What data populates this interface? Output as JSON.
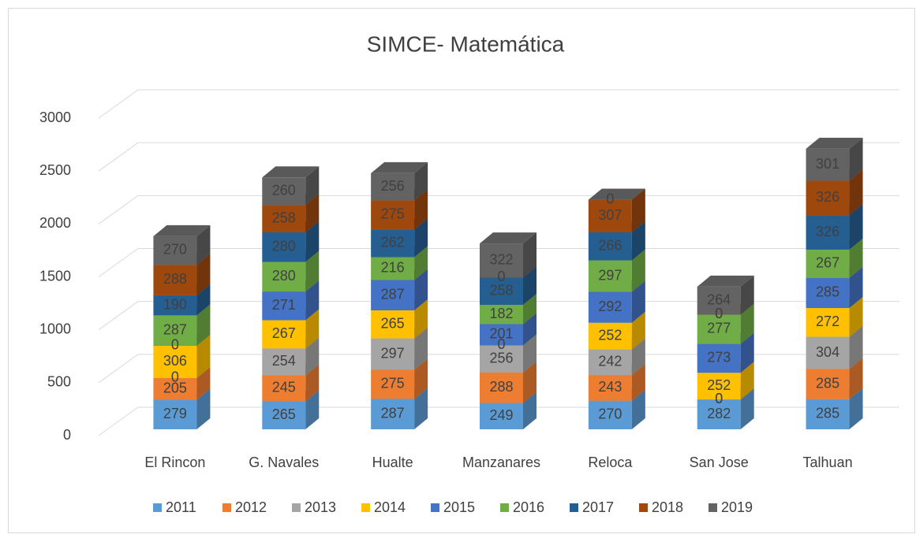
{
  "chart_data": {
    "type": "bar3d_stacked",
    "title": "SIMCE- Matemática",
    "categories": [
      "El Rincon",
      "G. Navales",
      "Hualte",
      "Manzanares",
      "Reloca",
      "San Jose",
      "Talhuan"
    ],
    "series": [
      {
        "name": "2011",
        "color": "#5b9bd5",
        "values": [
          279,
          265,
          287,
          249,
          270,
          282,
          285
        ]
      },
      {
        "name": "2012",
        "color": "#ed7d31",
        "values": [
          205,
          245,
          275,
          288,
          243,
          0,
          285
        ]
      },
      {
        "name": "2013",
        "color": "#a5a5a5",
        "values": [
          0,
          254,
          297,
          256,
          242,
          0,
          304
        ]
      },
      {
        "name": "2014",
        "color": "#ffc000",
        "values": [
          306,
          267,
          265,
          0,
          252,
          252,
          272
        ]
      },
      {
        "name": "2015",
        "color": "#4472c4",
        "values": [
          0,
          271,
          287,
          201,
          292,
          273,
          285
        ]
      },
      {
        "name": "2016",
        "color": "#70ad47",
        "values": [
          287,
          280,
          216,
          182,
          297,
          277,
          267
        ]
      },
      {
        "name": "2017",
        "color": "#255e91",
        "values": [
          190,
          280,
          262,
          258,
          266,
          0,
          326
        ]
      },
      {
        "name": "2018",
        "color": "#9e480e",
        "values": [
          288,
          258,
          275,
          0,
          307,
          0,
          326
        ]
      },
      {
        "name": "2019",
        "color": "#636363",
        "values": [
          270,
          260,
          256,
          322,
          0,
          264,
          301
        ]
      }
    ],
    "ylim": [
      0,
      3000
    ],
    "yticks": [
      0,
      500,
      1000,
      1500,
      2000,
      2500,
      3000
    ],
    "grid": true,
    "legend": "bottom"
  }
}
